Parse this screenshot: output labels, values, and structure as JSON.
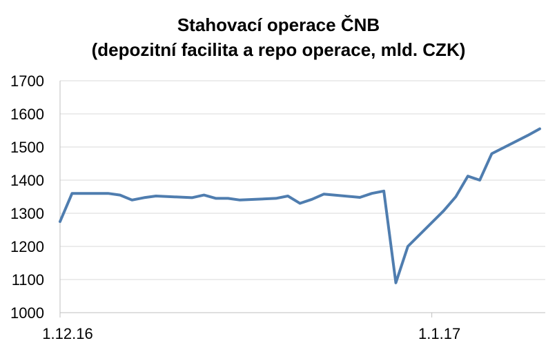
{
  "chart_data": {
    "type": "line",
    "title": "Stahovací operace ČNB",
    "subtitle": "(depozitní facilita a repo operace, mld. CZK)",
    "xlabel": "",
    "ylabel": "",
    "ylim": [
      1000,
      1700
    ],
    "yticks": [
      1000,
      1100,
      1200,
      1300,
      1400,
      1500,
      1600,
      1700
    ],
    "xtick_labels": [
      {
        "x": 0,
        "label": "1.12.16"
      },
      {
        "x": 31,
        "label": "1.1.17"
      }
    ],
    "grid": true,
    "legend": "none",
    "colors": {
      "line": "#4F7DAF",
      "grid": "#D9D9D9",
      "axis": "#BFBFBF"
    },
    "series": [
      {
        "x": [
          0,
          1,
          4,
          5,
          6,
          7,
          8,
          11,
          12,
          13,
          14,
          15,
          18,
          19,
          20,
          21,
          22,
          25,
          26,
          27,
          28,
          29,
          32,
          33,
          34,
          35,
          36,
          39,
          40
        ],
        "values": [
          1275,
          1360,
          1360,
          1355,
          1340,
          1347,
          1352,
          1347,
          1355,
          1345,
          1345,
          1340,
          1345,
          1352,
          1330,
          1342,
          1358,
          1348,
          1360,
          1367,
          1090,
          1200,
          1308,
          1350,
          1412,
          1400,
          1480,
          1535,
          1555
        ]
      }
    ]
  }
}
